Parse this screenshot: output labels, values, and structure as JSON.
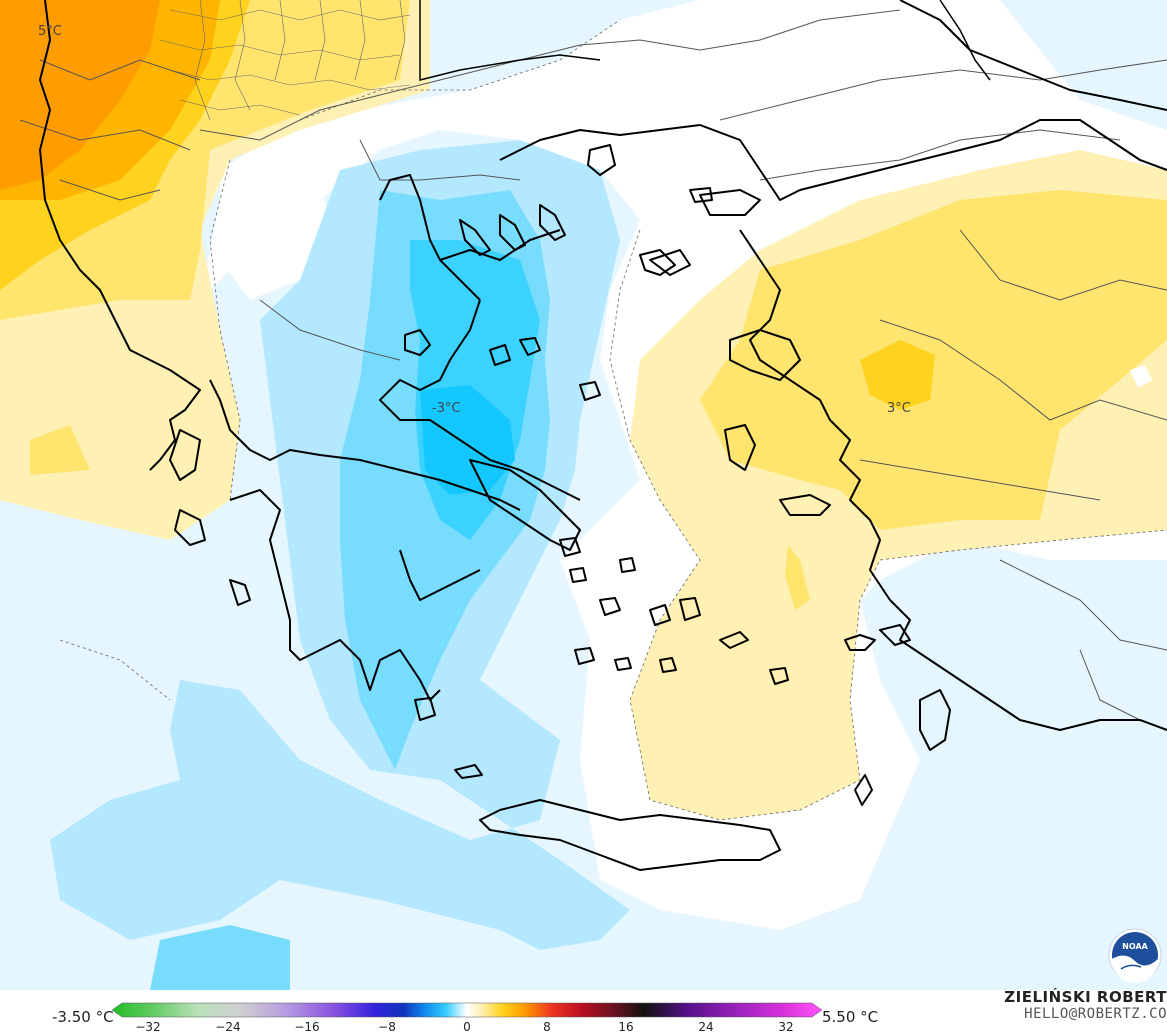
{
  "map": {
    "contour_labels": [
      {
        "id": "nw",
        "text": "5°C"
      },
      {
        "id": "center",
        "text": "-3°C"
      },
      {
        "id": "east",
        "text": "3°C"
      }
    ],
    "colors": {
      "deep_orange": "#ff9d00",
      "orange": "#ffb400",
      "gold": "#ffd21e",
      "yellow": "#ffe46e",
      "pale_yellow": "#fff0b4",
      "very_pale_blue": "#e6f6ff",
      "light_blue": "#b4e8ff",
      "sky_blue": "#78dcff",
      "blue": "#3cd2ff",
      "land_border": "#000000"
    },
    "logo": {
      "icon": "noaa-logo-icon",
      "text": "NOAA"
    }
  },
  "legend": {
    "min_label": "-3.50 °C",
    "max_label": "5.50 °C",
    "ticks": [
      "−32",
      "−24",
      "−16",
      "−8",
      "0",
      "8",
      "16",
      "24",
      "32"
    ],
    "author": "ZIELIŃSKI ROBERT",
    "email": "HELLO@ROBERTZ.CO"
  }
}
